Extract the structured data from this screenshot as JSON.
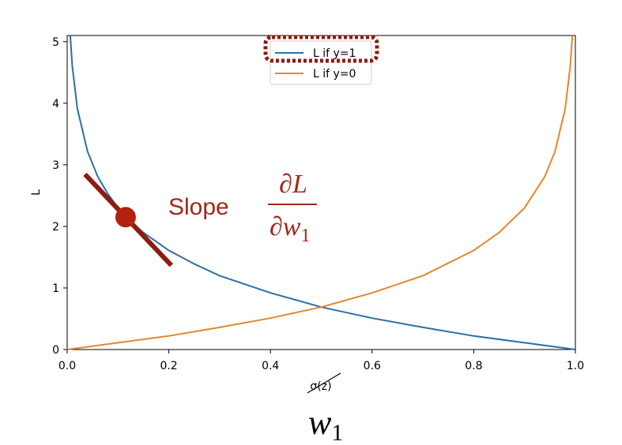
{
  "chart_data": {
    "type": "line",
    "xlabel": "σ(z)",
    "ylabel": "L",
    "xlim": [
      0.0,
      1.0
    ],
    "ylim": [
      0,
      5.1
    ],
    "x_ticks": [
      "0.0",
      "0.2",
      "0.4",
      "0.6",
      "0.8",
      "1.0"
    ],
    "y_ticks": [
      "0",
      "1",
      "2",
      "3",
      "4",
      "5"
    ],
    "grid": false,
    "legend_position": "top-center",
    "series": [
      {
        "name": "L if y=1",
        "color": "#2c6fa6",
        "x": [
          0.006,
          0.01,
          0.02,
          0.04,
          0.06,
          0.08,
          0.1,
          0.12,
          0.15,
          0.2,
          0.25,
          0.3,
          0.4,
          0.5,
          0.6,
          0.7,
          0.8,
          0.9,
          1.0
        ],
        "y": [
          5.1,
          4.61,
          3.91,
          3.22,
          2.81,
          2.53,
          2.3,
          2.12,
          1.9,
          1.61,
          1.39,
          1.2,
          0.92,
          0.69,
          0.51,
          0.36,
          0.22,
          0.11,
          0.0
        ]
      },
      {
        "name": "L if y=0",
        "color": "#e6862c",
        "x": [
          0.0,
          0.1,
          0.2,
          0.3,
          0.4,
          0.5,
          0.6,
          0.7,
          0.8,
          0.85,
          0.9,
          0.94,
          0.96,
          0.98,
          0.99,
          0.994
        ],
        "y": [
          0.0,
          0.11,
          0.22,
          0.36,
          0.51,
          0.69,
          0.92,
          1.2,
          1.61,
          1.9,
          2.3,
          2.81,
          3.22,
          3.91,
          4.61,
          5.1
        ]
      }
    ],
    "annotations": {
      "slope_label": "Slope",
      "fraction_numerator": "∂L",
      "fraction_denominator_main": "∂w",
      "fraction_denominator_sub": "1",
      "tangent_point": {
        "x": 0.115,
        "y": 2.15
      },
      "tangent_slope": -8.7,
      "tangent_x_range": [
        0.035,
        0.205
      ],
      "x_replacement_main": "w",
      "x_replacement_sub": "1",
      "highlight_color": "#8c1c12",
      "point_color": "#b3220f"
    }
  }
}
